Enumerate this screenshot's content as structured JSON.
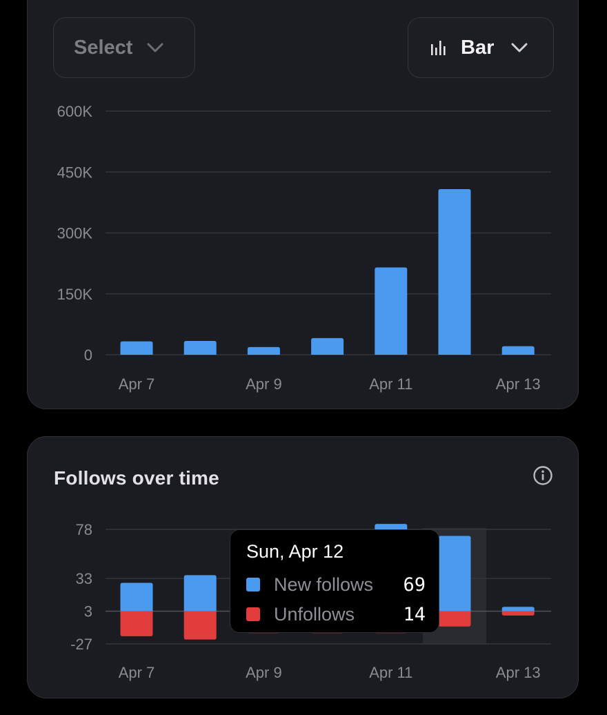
{
  "colors": {
    "new_follows": "#4a9af0",
    "unfollows": "#e23d3d",
    "card_bg": "#1b1c21",
    "grid": "#34353b",
    "tick_text": "#8a8b92",
    "highlight_bg": "#2a2b30"
  },
  "toolbar": {
    "select_label": "Select",
    "chart_type_label": "Bar",
    "chart_type_icon": "bar-chart-icon",
    "chevron_icon": "chevron-down-icon"
  },
  "follows_card": {
    "title": "Follows over time",
    "info_icon": "info-icon",
    "tooltip": {
      "date": "Sun, Apr 12",
      "rows": [
        {
          "name": "New follows",
          "value": "69"
        },
        {
          "name": "Unfollows",
          "value": "14"
        }
      ]
    }
  },
  "chart_data": [
    {
      "type": "bar",
      "title": "",
      "xlabel": "",
      "ylabel": "",
      "categories": [
        "Apr 7",
        "Apr 8",
        "Apr 9",
        "Apr 10",
        "Apr 11",
        "Apr 12",
        "Apr 13"
      ],
      "x_tick_labels": [
        "Apr 7",
        "Apr 9",
        "Apr 11",
        "Apr 13"
      ],
      "y_tick_labels": [
        "600K",
        "450K",
        "300K",
        "150K",
        "0"
      ],
      "y_tick_values": [
        600000,
        450000,
        300000,
        150000,
        0
      ],
      "values": [
        33000,
        34000,
        19000,
        41000,
        215000,
        408000,
        21000
      ],
      "ylim": [
        0,
        600000
      ],
      "grid": true
    },
    {
      "type": "bar",
      "stacked": true,
      "title": "Follows over time",
      "xlabel": "",
      "ylabel": "",
      "categories": [
        "Apr 7",
        "Apr 8",
        "Apr 9",
        "Apr 10",
        "Apr 11",
        "Apr 12",
        "Apr 13"
      ],
      "x_tick_labels": [
        "Apr 7",
        "Apr 9",
        "Apr 11",
        "Apr 13"
      ],
      "y_tick_labels": [
        "78",
        "33",
        "3",
        "-27"
      ],
      "y_tick_values": [
        78,
        33,
        3,
        -27
      ],
      "baseline": 3,
      "ylim": [
        -27,
        78
      ],
      "grid": true,
      "highlighted_category": "Apr 12",
      "series": [
        {
          "name": "New follows",
          "values": [
            26,
            33,
            30,
            28,
            80,
            69,
            4
          ]
        },
        {
          "name": "Unfollows",
          "values": [
            -23,
            -26,
            -20,
            -20,
            -20,
            -14,
            -4
          ]
        }
      ]
    }
  ]
}
